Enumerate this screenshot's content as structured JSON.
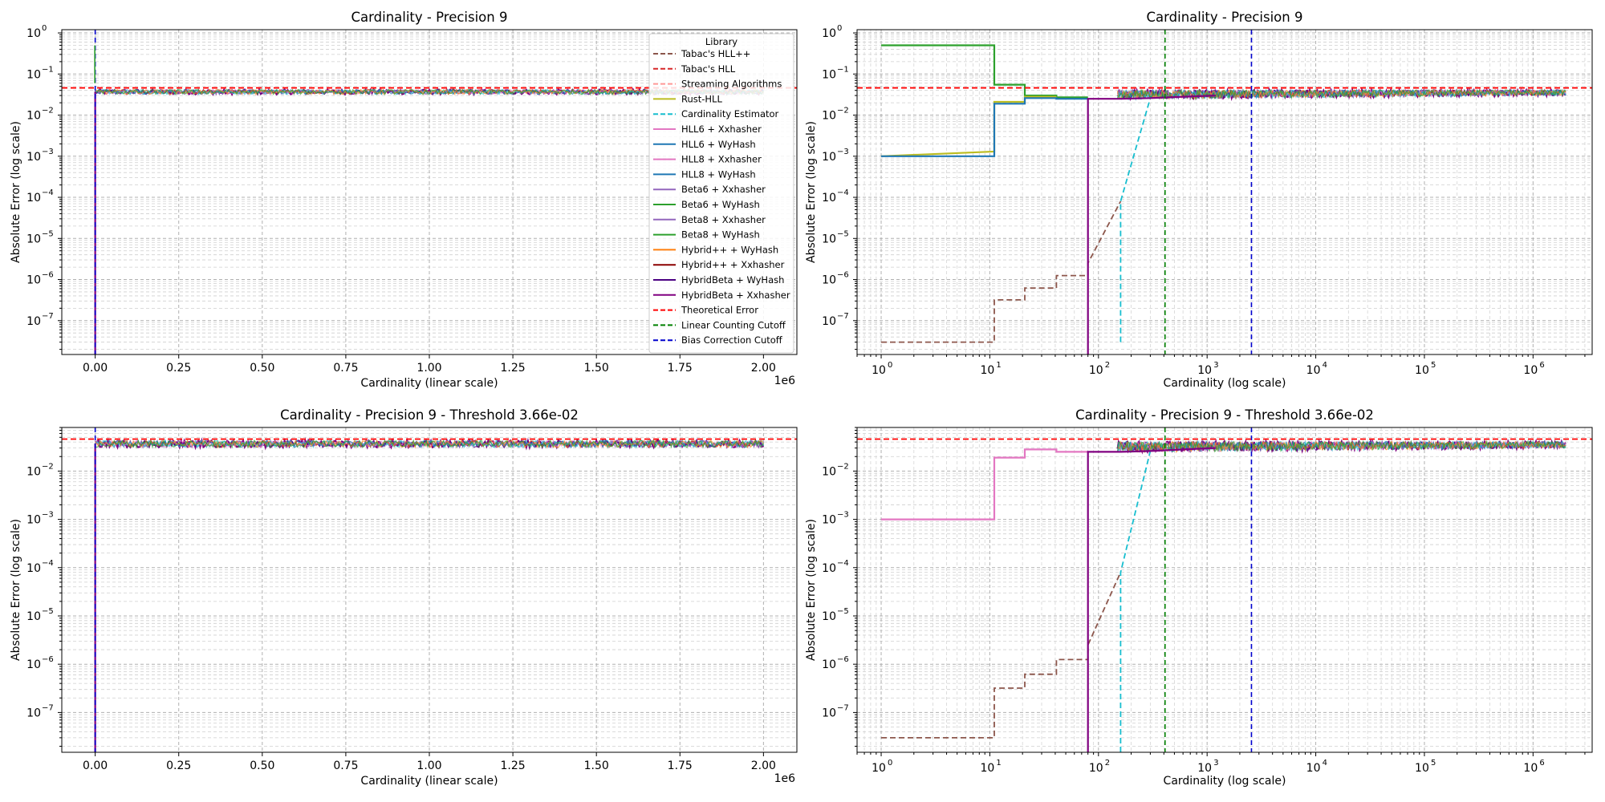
{
  "figure": {
    "suptitle": ""
  },
  "colors": {
    "tabac_hllpp": "#8c564b",
    "tabac_hll": "#d62728",
    "streaming": "#ff9896",
    "rust_hll": "#bcbd22",
    "card_est": "#17becf",
    "hll6_xx": "#e377c2",
    "hll6_wy": "#1f77b4",
    "hll8_xx": "#e377c2",
    "hll8_wy": "#1f77b4",
    "beta6_xx": "#9467bd",
    "beta6_wy": "#2ca02c",
    "beta8_xx": "#9467bd",
    "beta8_wy": "#2ca02c",
    "hybpp_wy": "#ff7f0e",
    "hybpp_xx": "#8b0000",
    "hybbeta_wy": "#4b0082",
    "hybbeta_xx": "#800080",
    "theoretical": "#ff0000",
    "lc_cutoff": "#008000",
    "bias_cutoff": "#0000cd"
  },
  "legend": {
    "title": "Library",
    "entries": [
      {
        "label": "Tabac's HLL++",
        "color": "#8c564b",
        "dash": true
      },
      {
        "label": "Tabac's HLL",
        "color": "#d62728",
        "dash": true
      },
      {
        "label": "Streaming Algorithms",
        "color": "#ff9896",
        "dash": true
      },
      {
        "label": "Rust-HLL",
        "color": "#bcbd22",
        "dash": false
      },
      {
        "label": "Cardinality Estimator",
        "color": "#17becf",
        "dash": true
      },
      {
        "label": "HLL6 + Xxhasher",
        "color": "#e377c2",
        "dash": false
      },
      {
        "label": "HLL6 + WyHash",
        "color": "#1f77b4",
        "dash": false
      },
      {
        "label": "HLL8 + Xxhasher",
        "color": "#e377c2",
        "dash": false
      },
      {
        "label": "HLL8 + WyHash",
        "color": "#1f77b4",
        "dash": false
      },
      {
        "label": "Beta6 + Xxhasher",
        "color": "#9467bd",
        "dash": false
      },
      {
        "label": "Beta6 + WyHash",
        "color": "#2ca02c",
        "dash": false
      },
      {
        "label": "Beta8 + Xxhasher",
        "color": "#9467bd",
        "dash": false
      },
      {
        "label": "Beta8 + WyHash",
        "color": "#2ca02c",
        "dash": false
      },
      {
        "label": "Hybrid++ + WyHash",
        "color": "#ff7f0e",
        "dash": false
      },
      {
        "label": "Hybrid++ + Xxhasher",
        "color": "#8b0000",
        "dash": false
      },
      {
        "label": "HybridBeta + WyHash",
        "color": "#4b0082",
        "dash": false
      },
      {
        "label": "HybridBeta + Xxhasher",
        "color": "#800080",
        "dash": false
      },
      {
        "label": "Theoretical Error",
        "color": "#ff0000",
        "dash": true
      },
      {
        "label": "Linear Counting Cutoff",
        "color": "#008000",
        "dash": true
      },
      {
        "label": "Bias Correction Cutoff",
        "color": "#0000cd",
        "dash": true
      }
    ]
  },
  "chart_data": [
    {
      "type": "line",
      "title": "Cardinality - Precision 9",
      "xlabel": "Cardinality (linear scale)",
      "ylabel": "Absolute Error (log scale)",
      "xscale": "linear",
      "yscale": "log",
      "xlim": [
        -100000,
        2100000
      ],
      "ylim": [
        1.5e-08,
        1.2
      ],
      "x_ticks": [
        0,
        250000,
        500000,
        750000,
        1000000,
        1250000,
        1500000,
        1750000,
        2000000
      ],
      "x_tick_labels": [
        "0.00",
        "0.25",
        "0.50",
        "0.75",
        "1.00",
        "1.25",
        "1.50",
        "1.75",
        "2.00"
      ],
      "x_offset_label": "1e6",
      "y_tick_exponents": [
        -7,
        -6,
        -5,
        -4,
        -3,
        -2,
        -1,
        0
      ],
      "grid": true,
      "legend": "top-right",
      "theoretical_error": 0.046,
      "linear_counting_cutoff": 410,
      "bias_correction_cutoff": 2560,
      "band": {
        "x": [
          0,
          2000000
        ],
        "low": 0.032,
        "high": 0.042,
        "center": 0.037
      },
      "series_note": "All 17 library series overlap in a band near 3.7e-02 across 0 to 2.0e6"
    },
    {
      "type": "line",
      "title": "Cardinality - Precision 9",
      "xlabel": "Cardinality (log scale)",
      "ylabel": "Absolute Error (log scale)",
      "xscale": "log",
      "yscale": "log",
      "xlim": [
        0.6,
        3500000
      ],
      "ylim": [
        1.5e-08,
        1.2
      ],
      "x_tick_exponents": [
        0,
        1,
        2,
        3,
        4,
        5,
        6
      ],
      "y_tick_exponents": [
        -7,
        -6,
        -5,
        -4,
        -3,
        -2,
        -1,
        0
      ],
      "grid": true,
      "theoretical_error": 0.046,
      "linear_counting_cutoff": 410,
      "bias_correction_cutoff": 2560,
      "band": {
        "x": [
          150,
          2000000
        ],
        "low": 0.03,
        "high": 0.041,
        "center": 0.036
      },
      "series": [
        {
          "name": "Tabac's HLL++",
          "color": "#8c564b",
          "dash": true,
          "x": [
            1,
            11,
            11,
            21,
            21,
            41,
            41,
            80,
            80,
            160
          ],
          "y": [
            3e-08,
            3e-08,
            3.2e-07,
            3.2e-07,
            6.2e-07,
            6.2e-07,
            1.25e-06,
            1.25e-06,
            2.5e-06,
            8e-05
          ]
        },
        {
          "name": "Cardinality Estimator",
          "color": "#17becf",
          "dash": true,
          "x": [
            160,
            160,
            300
          ],
          "y": [
            3e-08,
            8e-05,
            0.026
          ]
        },
        {
          "name": "Beta6 + WyHash",
          "color": "#2ca02c",
          "dash": false,
          "x": [
            1,
            11,
            11,
            21,
            21,
            41,
            41,
            80
          ],
          "y": [
            0.5,
            0.5,
            0.055,
            0.055,
            0.03,
            0.03,
            0.027,
            0.027
          ]
        },
        {
          "name": "Rust-HLL",
          "color": "#bcbd22",
          "dash": false,
          "x": [
            1,
            11,
            11,
            21,
            21,
            41
          ],
          "y": [
            0.001,
            0.0013,
            0.021,
            0.021,
            0.028,
            0.028
          ]
        },
        {
          "name": "HLL6 + WyHash",
          "color": "#1f77b4",
          "dash": false,
          "x": [
            1,
            11,
            11,
            21,
            21,
            41,
            41,
            80
          ],
          "y": [
            0.001,
            0.001,
            0.019,
            0.019,
            0.026,
            0.026,
            0.025,
            0.025
          ]
        },
        {
          "name": "HybridBeta + Xxhasher",
          "color": "#800080",
          "dash": false,
          "x": [
            80,
            80,
            160,
            300,
            600,
            1200
          ],
          "y": [
            1.5e-08,
            0.025,
            0.025,
            0.026,
            0.028,
            0.03
          ]
        }
      ]
    },
    {
      "type": "line",
      "title": "Cardinality - Precision 9 - Threshold 3.66e-02",
      "xlabel": "Cardinality (linear scale)",
      "ylabel": "Absolute Error (log scale)",
      "xscale": "linear",
      "yscale": "log",
      "xlim": [
        -100000,
        2100000
      ],
      "ylim": [
        1.5e-08,
        0.08
      ],
      "x_ticks": [
        0,
        250000,
        500000,
        750000,
        1000000,
        1250000,
        1500000,
        1750000,
        2000000
      ],
      "x_tick_labels": [
        "0.00",
        "0.25",
        "0.50",
        "0.75",
        "1.00",
        "1.25",
        "1.50",
        "1.75",
        "2.00"
      ],
      "x_offset_label": "1e6",
      "y_tick_exponents": [
        -7,
        -6,
        -5,
        -4,
        -3,
        -2
      ],
      "grid": true,
      "theoretical_error": 0.046,
      "linear_counting_cutoff": 410,
      "bias_correction_cutoff": 2560,
      "threshold": 0.0366,
      "band": {
        "x": [
          0,
          2000000
        ],
        "low": 0.031,
        "high": 0.043,
        "center": 0.037
      }
    },
    {
      "type": "line",
      "title": "Cardinality - Precision 9 - Threshold 3.66e-02",
      "xlabel": "Cardinality (log scale)",
      "ylabel": "Absolute Error (log scale)",
      "xscale": "log",
      "yscale": "log",
      "xlim": [
        0.6,
        3500000
      ],
      "ylim": [
        1.5e-08,
        0.08
      ],
      "x_tick_exponents": [
        0,
        1,
        2,
        3,
        4,
        5,
        6
      ],
      "y_tick_exponents": [
        -7,
        -6,
        -5,
        -4,
        -3,
        -2
      ],
      "grid": true,
      "theoretical_error": 0.046,
      "linear_counting_cutoff": 410,
      "bias_correction_cutoff": 2560,
      "threshold": 0.0366,
      "band": {
        "x": [
          150,
          2000000
        ],
        "low": 0.03,
        "high": 0.041,
        "center": 0.036
      },
      "series": [
        {
          "name": "Tabac's HLL++",
          "color": "#8c564b",
          "dash": true,
          "x": [
            1,
            11,
            11,
            21,
            21,
            41,
            41,
            80,
            80,
            160
          ],
          "y": [
            3e-08,
            3e-08,
            3.2e-07,
            3.2e-07,
            6.2e-07,
            6.2e-07,
            1.25e-06,
            1.25e-06,
            2.5e-06,
            8e-05
          ]
        },
        {
          "name": "Cardinality Estimator",
          "color": "#17becf",
          "dash": true,
          "x": [
            160,
            160,
            300
          ],
          "y": [
            1.5e-08,
            8e-05,
            0.026
          ]
        },
        {
          "name": "HLL6 + Xxhasher",
          "color": "#e377c2",
          "dash": false,
          "x": [
            1,
            11,
            11,
            21,
            21,
            41,
            41,
            80
          ],
          "y": [
            0.001,
            0.001,
            0.019,
            0.019,
            0.028,
            0.028,
            0.025,
            0.025
          ]
        },
        {
          "name": "HybridBeta + Xxhasher",
          "color": "#800080",
          "dash": false,
          "x": [
            80,
            80,
            160,
            300,
            600,
            1200
          ],
          "y": [
            1.5e-08,
            0.025,
            0.025,
            0.026,
            0.028,
            0.03
          ]
        }
      ]
    }
  ]
}
